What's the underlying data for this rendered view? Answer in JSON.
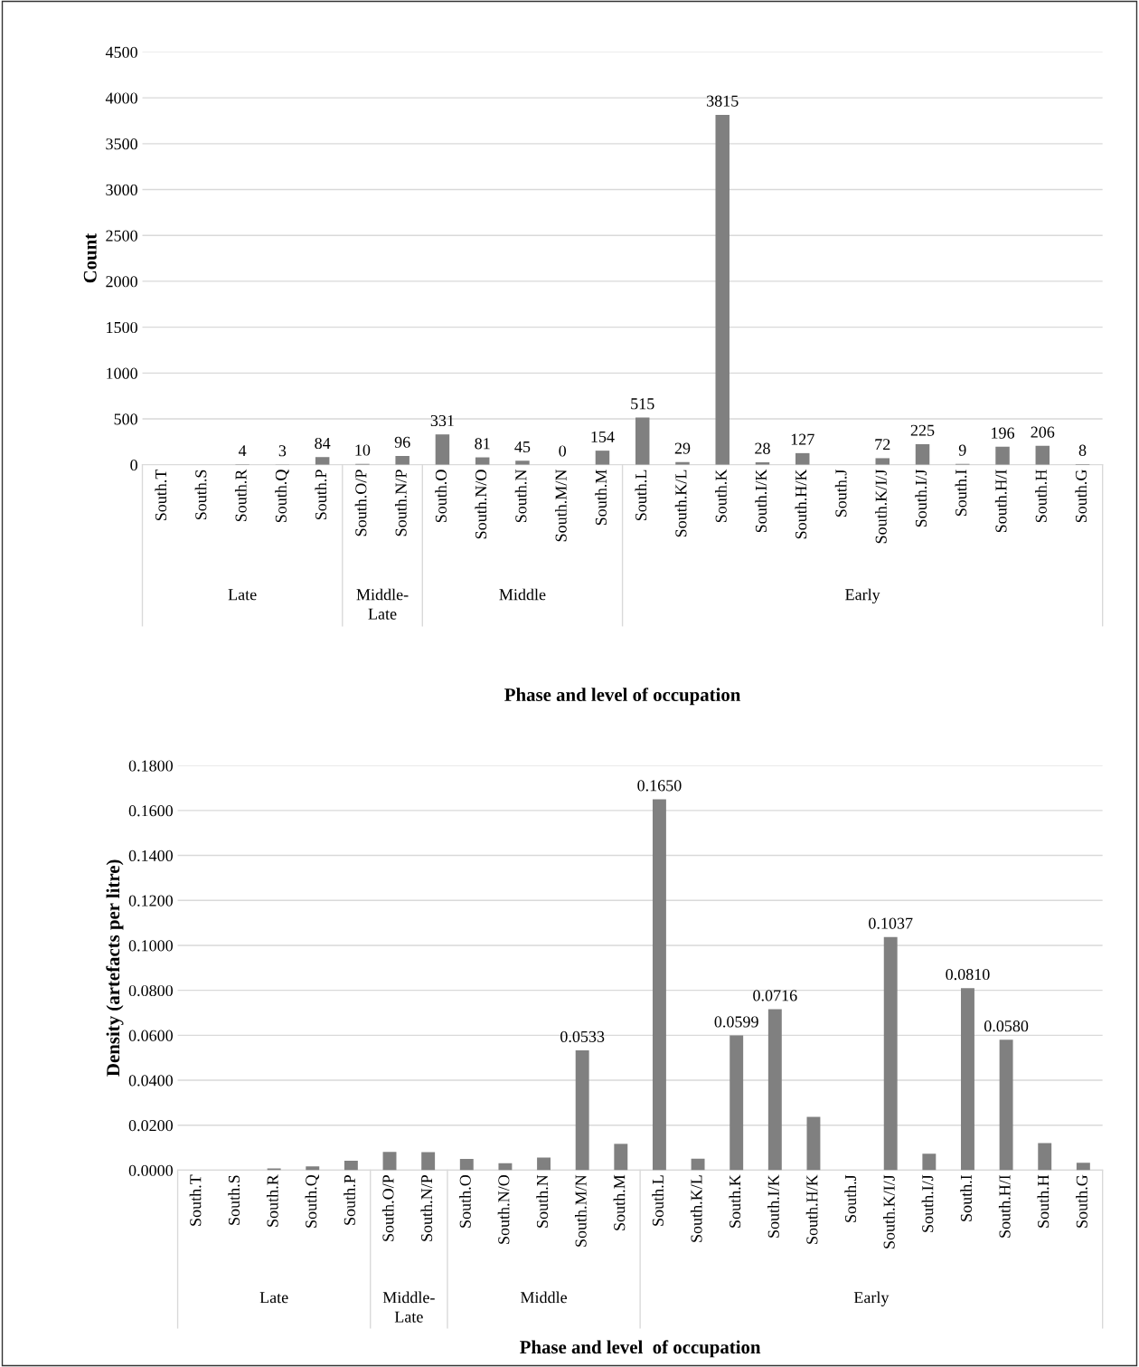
{
  "chart_data": [
    {
      "type": "bar",
      "xlabel": "Phase and level of occupation",
      "ylabel": "Count",
      "categories": [
        "South.T",
        "South.S",
        "South.R",
        "South.Q",
        "South.P",
        "South.O/P",
        "South.N/P",
        "South.O",
        "South.N/O",
        "South.N",
        "South.M/N",
        "South.M",
        "South.L",
        "South.K/L",
        "South.K",
        "South.I/K",
        "South.H/K",
        "South.J",
        "South.K/I/J",
        "South.I/J",
        "South.I",
        "South.H/I",
        "South.H",
        "South.G"
      ],
      "values": [
        null,
        null,
        4,
        3,
        84,
        10,
        96,
        331,
        81,
        45,
        0,
        154,
        515,
        29,
        3815,
        28,
        127,
        null,
        72,
        225,
        9,
        196,
        206,
        8
      ],
      "value_labels": [
        null,
        null,
        "4",
        "3",
        "84",
        "10",
        "96",
        "331",
        "81",
        "45",
        "0",
        "154",
        "515",
        "29",
        "3815",
        "28",
        "127",
        null,
        "72",
        "225",
        "9",
        "196",
        "206",
        "8"
      ],
      "color": "#808080",
      "ylim": [
        0,
        4500
      ],
      "yticks": [
        0,
        500,
        1000,
        1500,
        2000,
        2500,
        3000,
        3500,
        4000,
        4500
      ],
      "grid": "y",
      "annotations": [
        "Late",
        "Middle-\nLate",
        "Middle",
        "Early"
      ]
    },
    {
      "type": "bar",
      "xlabel": "Phase and level  of occupation",
      "ylabel": "Density (artefacts per litre)",
      "categories": [
        "South.T",
        "South.S",
        "South.R",
        "South.Q",
        "South.P",
        "South.O/P",
        "South.N/P",
        "South.O",
        "South.N/O",
        "South.N",
        "South.M/N",
        "South.M",
        "South.L",
        "South.K/L",
        "South.K",
        "South.I/K",
        "South.H/K",
        "South.J",
        "South.K/I/J",
        "South.I/J",
        "South.I",
        "South.H/I",
        "South.H",
        "South.G"
      ],
      "values": [
        null,
        null,
        0.0008,
        0.0017,
        0.0042,
        0.0081,
        0.008,
        0.005,
        0.0031,
        0.0056,
        0.0533,
        0.0117,
        0.165,
        0.0051,
        0.0599,
        0.0716,
        0.0237,
        null,
        0.1037,
        0.0073,
        0.081,
        0.058,
        0.012,
        0.0033
      ],
      "value_labels": [
        null,
        null,
        null,
        null,
        null,
        null,
        null,
        null,
        null,
        null,
        "0.0533",
        null,
        "0.1650",
        null,
        "0.0599",
        "0.0716",
        null,
        null,
        "0.1037",
        null,
        "0.0810",
        "0.0580",
        null,
        null
      ],
      "color": "#808080",
      "ylim": [
        0,
        0.18
      ],
      "yticks": [
        {
          "value": 0,
          "label": "0.0000"
        },
        {
          "value": 0.02,
          "label": "0.0200"
        },
        {
          "value": 0.04,
          "label": "0.0400"
        },
        {
          "value": 0.06,
          "label": "0.0600"
        },
        {
          "value": 0.08,
          "label": "0.0800"
        },
        {
          "value": 0.1,
          "label": "0.1000"
        },
        {
          "value": 0.12,
          "label": "0.1200"
        },
        {
          "value": 0.14,
          "label": "0.1400"
        },
        {
          "value": 0.16,
          "label": "0.1600"
        },
        {
          "value": 0.18,
          "label": "0.1800"
        }
      ],
      "grid": "y",
      "annotations": [
        "Late",
        "Middle-\nLate",
        "Middle",
        "Early"
      ]
    }
  ]
}
